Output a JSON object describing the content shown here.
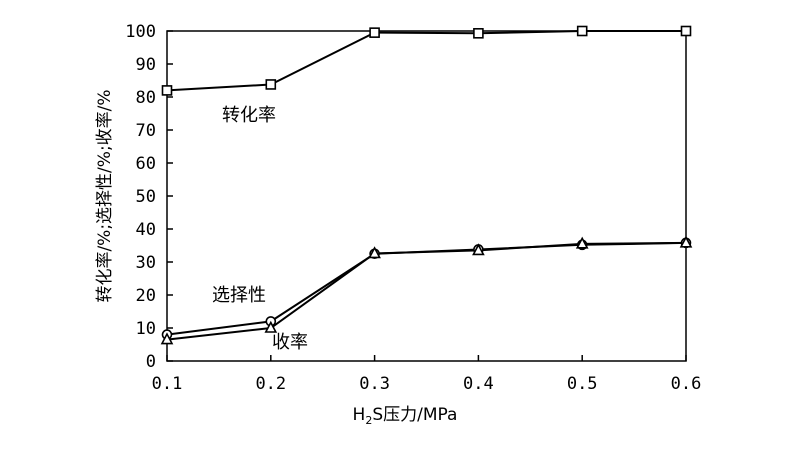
{
  "chart_data": {
    "type": "line",
    "x": [
      0.1,
      0.2,
      0.3,
      0.4,
      0.5,
      0.6
    ],
    "x_tick_labels": [
      "0.1",
      "0.2",
      "0.3",
      "0.4",
      "0.5",
      "0.6"
    ],
    "y_ticks": [
      0,
      10,
      20,
      30,
      40,
      50,
      60,
      70,
      80,
      90,
      100
    ],
    "xlim": [
      0.1,
      0.6
    ],
    "ylim": [
      0,
      100
    ],
    "xlabel": {
      "prefix": "H",
      "subscript": "2",
      "suffix": "S压力/MPa"
    },
    "ylabel": "转化率/%;选择性/%;收率/%",
    "grid": false,
    "series": [
      {
        "name": "转化率",
        "marker": "square",
        "values": [
          82,
          83.8,
          99.5,
          99.3,
          100,
          100
        ]
      },
      {
        "name": "选择性",
        "marker": "circle",
        "values": [
          8,
          12,
          32.5,
          33.8,
          35.2,
          35.8
        ]
      },
      {
        "name": "收率",
        "marker": "triangle",
        "values": [
          6.5,
          10,
          32.6,
          33.5,
          35.5,
          35.8
        ]
      }
    ],
    "annotations": [
      {
        "text": "转化率",
        "series": 0
      },
      {
        "text": "选择性",
        "series": 1
      },
      {
        "text": "收率",
        "series": 2
      }
    ]
  }
}
